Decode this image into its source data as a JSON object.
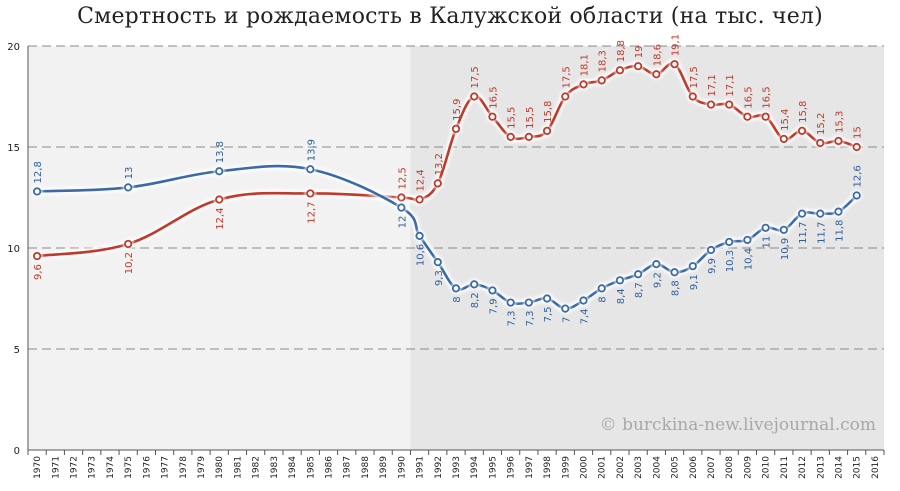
{
  "chart_data": {
    "type": "line",
    "title": "Смертность и рождаемость в Калужской области (на тыс. чел)",
    "xlabel": "",
    "ylabel": "",
    "ylim": [
      0,
      20
    ],
    "yticks": [
      0,
      5,
      10,
      15,
      20
    ],
    "grid": true,
    "x": [
      "1970",
      "1971",
      "1972",
      "1973",
      "1974",
      "1975",
      "1976",
      "1977",
      "1978",
      "1979",
      "1980",
      "1981",
      "1982",
      "1983",
      "1984",
      "1985",
      "1986",
      "1987",
      "1988",
      "1989",
      "1990",
      "1991",
      "1992",
      "1993",
      "1994",
      "1995",
      "1996",
      "1997",
      "1998",
      "1999",
      "2000",
      "2001",
      "2002",
      "2003",
      "2004",
      "2005",
      "2006",
      "2007",
      "2008",
      "2009",
      "2010",
      "2011",
      "2012",
      "2013",
      "2014",
      "2015",
      "2016"
    ],
    "shaded_from": "1991",
    "series": [
      {
        "name": "",
        "color": "#c0392b",
        "label_color": "#c0392b",
        "points": [
          {
            "x": "1970",
            "y": 9.6,
            "label": "9,6"
          },
          {
            "x": "1975",
            "y": 10.2,
            "label": "10,2"
          },
          {
            "x": "1980",
            "y": 12.4,
            "label": "12,4"
          },
          {
            "x": "1985",
            "y": 12.7,
            "label": "12,7"
          },
          {
            "x": "1990",
            "y": 12.5,
            "label": "12,5"
          },
          {
            "x": "1991",
            "y": 12.4,
            "label": "12,4"
          },
          {
            "x": "1992",
            "y": 13.2,
            "label": "13,2"
          },
          {
            "x": "1993",
            "y": 15.9,
            "label": "15,9"
          },
          {
            "x": "1994",
            "y": 17.5,
            "label": "17,5"
          },
          {
            "x": "1995",
            "y": 16.5,
            "label": "16,5"
          },
          {
            "x": "1996",
            "y": 15.5,
            "label": "15,5"
          },
          {
            "x": "1997",
            "y": 15.5,
            "label": "15,5"
          },
          {
            "x": "1998",
            "y": 15.8,
            "label": "15,8"
          },
          {
            "x": "1999",
            "y": 17.5,
            "label": "17,5"
          },
          {
            "x": "2000",
            "y": 18.1,
            "label": "18,1"
          },
          {
            "x": "2001",
            "y": 18.3,
            "label": "18,3"
          },
          {
            "x": "2002",
            "y": 18.8,
            "label": "18,8"
          },
          {
            "x": "2003",
            "y": 19.0,
            "label": "19"
          },
          {
            "x": "2004",
            "y": 18.6,
            "label": "18,6"
          },
          {
            "x": "2005",
            "y": 19.1,
            "label": "19,1"
          },
          {
            "x": "2006",
            "y": 17.5,
            "label": "17,5"
          },
          {
            "x": "2007",
            "y": 17.1,
            "label": "17,1"
          },
          {
            "x": "2008",
            "y": 17.1,
            "label": "17,1"
          },
          {
            "x": "2009",
            "y": 16.5,
            "label": "16,5"
          },
          {
            "x": "2010",
            "y": 16.5,
            "label": "16,5"
          },
          {
            "x": "2011",
            "y": 15.4,
            "label": "15,4"
          },
          {
            "x": "2012",
            "y": 15.8,
            "label": "15,8"
          },
          {
            "x": "2013",
            "y": 15.2,
            "label": "15,2"
          },
          {
            "x": "2014",
            "y": 15.3,
            "label": "15,3"
          },
          {
            "x": "2015",
            "y": 15.0,
            "label": "15"
          }
        ]
      },
      {
        "name": "",
        "color": "#3a6aa8",
        "label_color": "#2f5f9a",
        "points": [
          {
            "x": "1970",
            "y": 12.8,
            "label": "12,8"
          },
          {
            "x": "1975",
            "y": 13.0,
            "label": "13"
          },
          {
            "x": "1980",
            "y": 13.8,
            "label": "13,8"
          },
          {
            "x": "1985",
            "y": 13.9,
            "label": "13,9"
          },
          {
            "x": "1990",
            "y": 12.0,
            "label": "12"
          },
          {
            "x": "1991",
            "y": 10.6,
            "label": "10,6"
          },
          {
            "x": "1992",
            "y": 9.3,
            "label": "9,3"
          },
          {
            "x": "1993",
            "y": 8.0,
            "label": "8"
          },
          {
            "x": "1994",
            "y": 8.2,
            "label": "8,2"
          },
          {
            "x": "1995",
            "y": 7.9,
            "label": "7,9"
          },
          {
            "x": "1996",
            "y": 7.3,
            "label": "7,3"
          },
          {
            "x": "1997",
            "y": 7.3,
            "label": "7,3"
          },
          {
            "x": "1998",
            "y": 7.5,
            "label": "7,5"
          },
          {
            "x": "1999",
            "y": 7.0,
            "label": "7"
          },
          {
            "x": "2000",
            "y": 7.4,
            "label": "7,4"
          },
          {
            "x": "2001",
            "y": 8.0,
            "label": "8"
          },
          {
            "x": "2002",
            "y": 8.4,
            "label": "8,4"
          },
          {
            "x": "2003",
            "y": 8.7,
            "label": "8,7"
          },
          {
            "x": "2004",
            "y": 9.2,
            "label": "9,2"
          },
          {
            "x": "2005",
            "y": 8.8,
            "label": "8,8"
          },
          {
            "x": "2006",
            "y": 9.1,
            "label": "9,1"
          },
          {
            "x": "2007",
            "y": 9.9,
            "label": "9,9"
          },
          {
            "x": "2008",
            "y": 10.3,
            "label": "10,3"
          },
          {
            "x": "2009",
            "y": 10.4,
            "label": "10,4"
          },
          {
            "x": "2010",
            "y": 11.0,
            "label": "11"
          },
          {
            "x": "2011",
            "y": 10.9,
            "label": "10,9"
          },
          {
            "x": "2012",
            "y": 11.7,
            "label": "11,7"
          },
          {
            "x": "2013",
            "y": 11.7,
            "label": "11,7"
          },
          {
            "x": "2014",
            "y": 11.8,
            "label": "11,8"
          },
          {
            "x": "2015",
            "y": 12.6,
            "label": "12,6"
          }
        ]
      }
    ],
    "watermark": "© burckina-new.livejournal.com"
  }
}
